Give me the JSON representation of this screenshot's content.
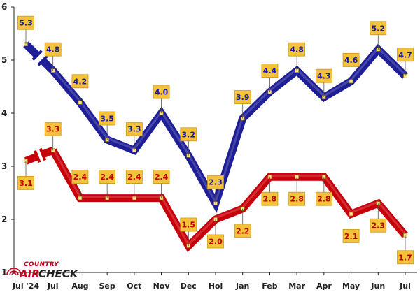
{
  "chart_data": {
    "type": "line",
    "title": "",
    "xlabel": "",
    "ylabel": "",
    "ylim": [
      1,
      6
    ],
    "y_ticks": [
      "1",
      "2",
      "3",
      "4",
      "5",
      "6"
    ],
    "categories": [
      "Jul '24",
      "Jul",
      "Aug",
      "Sep",
      "Oct",
      "Nov",
      "Dec",
      "Hol",
      "Jan",
      "Feb",
      "Mar",
      "Apr",
      "May",
      "Jun",
      "Jul"
    ],
    "series": [
      {
        "color": "#1e1e96",
        "values": [
          5.3,
          4.8,
          4.2,
          3.5,
          3.3,
          4.0,
          3.2,
          2.3,
          3.9,
          4.4,
          4.8,
          4.3,
          4.6,
          5.2,
          4.7
        ],
        "labels": [
          "5.3",
          "4.8",
          "4.2",
          "3.5",
          "3.3",
          "4.0",
          "3.2",
          "2.3",
          "3.9",
          "4.4",
          "4.8",
          "4.3",
          "4.6",
          "5.2",
          "4.7"
        ],
        "label_position": [
          "above",
          "above",
          "above",
          "above",
          "above",
          "above",
          "above",
          "above",
          "above",
          "above",
          "above",
          "above",
          "above",
          "above",
          "above"
        ]
      },
      {
        "color": "#c8000a",
        "values": [
          3.1,
          3.3,
          2.4,
          2.4,
          2.4,
          2.4,
          1.5,
          2.0,
          2.2,
          2.8,
          2.8,
          2.8,
          2.1,
          2.3,
          1.7
        ],
        "labels": [
          "3.1",
          "3.3",
          "2.4",
          "2.4",
          "2.4",
          "2.4",
          "1.5",
          "2.0",
          "2.2",
          "2.8",
          "2.8",
          "2.8",
          "2.1",
          "2.3",
          "1.7"
        ],
        "label_position": [
          "below",
          "above",
          "above",
          "above",
          "above",
          "above",
          "above",
          "below",
          "below",
          "below",
          "below",
          "below",
          "below",
          "below",
          "below"
        ]
      }
    ],
    "grid": false,
    "axis_break_after_first": true,
    "label_box_color": "#f5c33b"
  },
  "logo": {
    "top": "COUNTRY",
    "air": "AIR",
    "check": "CHECK"
  }
}
